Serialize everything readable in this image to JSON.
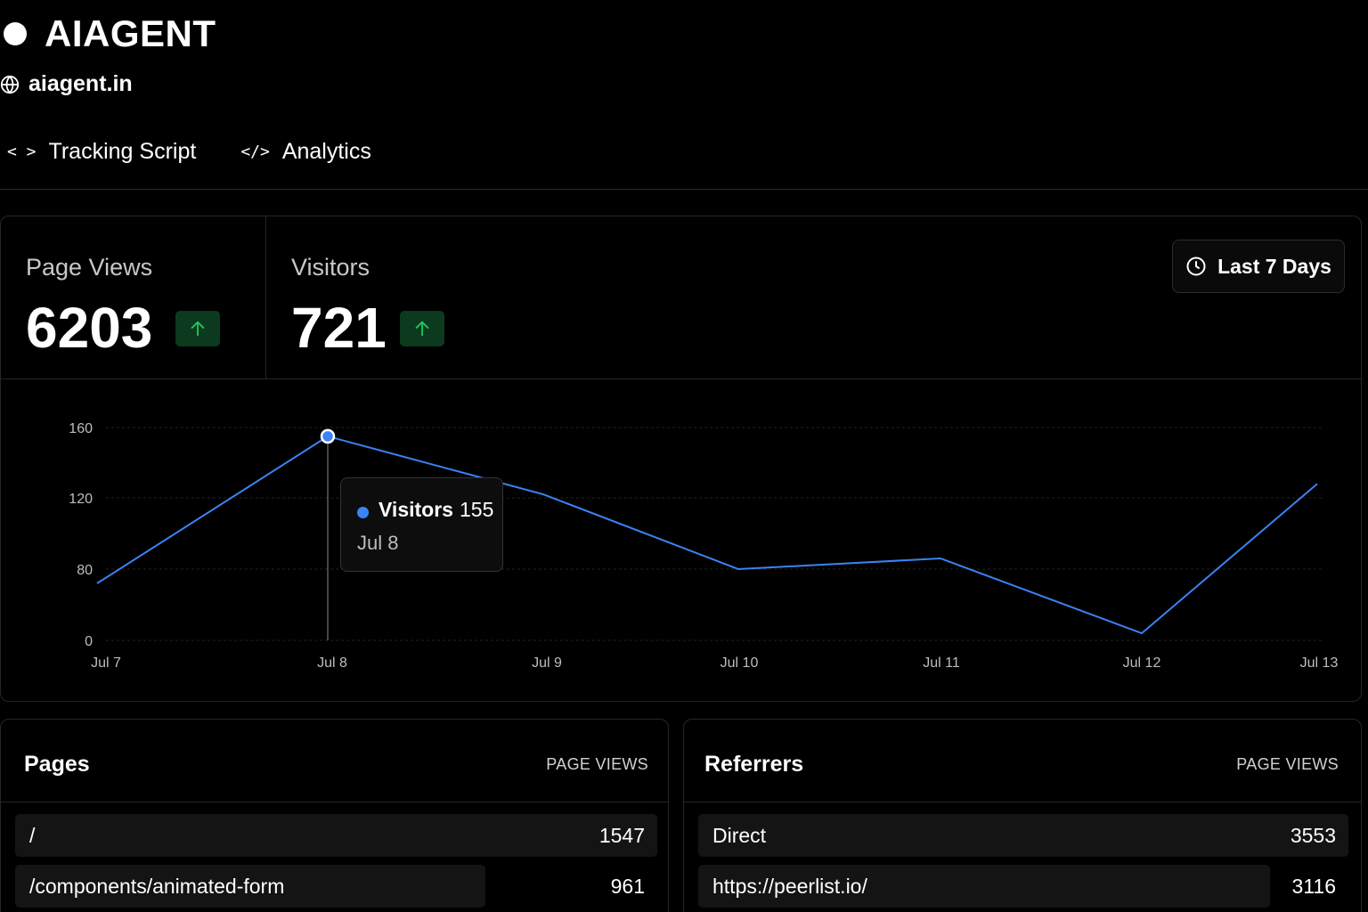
{
  "brand": {
    "name": "AIAGENT"
  },
  "site": {
    "domain": "aiagent.in"
  },
  "tabs": [
    {
      "icon": "code-icon",
      "label": "Tracking Script"
    },
    {
      "icon": "code-slash-icon",
      "label": "Analytics"
    }
  ],
  "stats": {
    "page_views": {
      "label": "Page Views",
      "value": "6203"
    },
    "visitors": {
      "label": "Visitors",
      "value": "721"
    }
  },
  "date_range": {
    "label": "Last 7 Days"
  },
  "tooltip": {
    "series": "Visitors",
    "value": "155",
    "date": "Jul 8"
  },
  "colors": {
    "accent": "#3b82f6",
    "trend_bg": "#0b3a1e",
    "trend_fg": "#22c55e"
  },
  "chart_data": {
    "type": "line",
    "x": [
      "Jul 7",
      "Jul 8",
      "Jul 9",
      "Jul 10",
      "Jul 11",
      "Jul 12",
      "Jul 13"
    ],
    "y_ticks": [
      "0",
      "80",
      "120",
      "160"
    ],
    "series": [
      {
        "name": "Visitors",
        "values": [
          64,
          155,
          122,
          80,
          86,
          8,
          128
        ]
      }
    ],
    "ylim": [
      0,
      160
    ],
    "grid": true,
    "active_point": 1
  },
  "pages": {
    "title": "Pages",
    "column": "PAGE VIEWS",
    "rows": [
      {
        "label": "/",
        "value": "1547"
      },
      {
        "label": "/components/animated-form",
        "value": "961"
      }
    ]
  },
  "referrers": {
    "title": "Referrers",
    "column": "PAGE VIEWS",
    "rows": [
      {
        "label": "Direct",
        "value": "3553"
      },
      {
        "label": "https://peerlist.io/",
        "value": "3116"
      }
    ]
  }
}
